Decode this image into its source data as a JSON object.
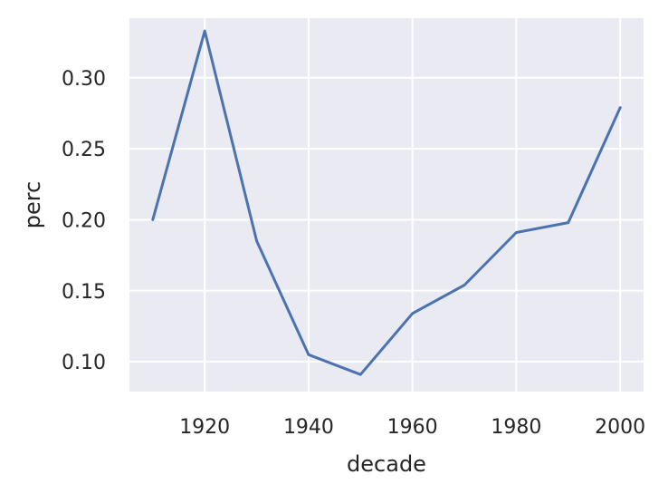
{
  "chart_data": {
    "type": "line",
    "xlabel": "decade",
    "ylabel": "perc",
    "xlim": [
      1905.5,
      2004.5
    ],
    "ylim": [
      0.079,
      0.342
    ],
    "xticks": [
      1920,
      1940,
      1960,
      1980,
      2000
    ],
    "yticks": [
      0.1,
      0.15,
      0.2,
      0.25,
      0.3
    ],
    "xtick_labels": [
      "1920",
      "1940",
      "1960",
      "1980",
      "2000"
    ],
    "ytick_labels": [
      "0.10",
      "0.15",
      "0.20",
      "0.25",
      "0.30"
    ],
    "grid": true,
    "series": [
      {
        "color": "#4c72b0",
        "x": [
          1910,
          1920,
          1930,
          1940,
          1950,
          1960,
          1970,
          1980,
          1990,
          2000
        ],
        "y": [
          0.2,
          0.333,
          0.185,
          0.105,
          0.091,
          0.134,
          0.154,
          0.191,
          0.198,
          0.279
        ]
      }
    ],
    "style": {
      "plot_background": "#eaeaf2",
      "grid_color": "#ffffff",
      "text_color": "#262626"
    }
  }
}
